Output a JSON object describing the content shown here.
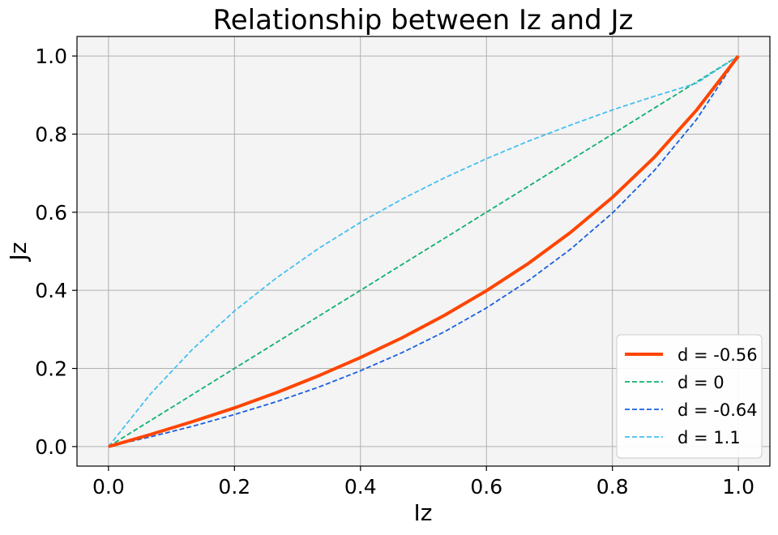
{
  "chart_data": {
    "type": "line",
    "title": "Relationship between Iz and Jz",
    "xlabel": "Iz",
    "ylabel": "Jz",
    "xlim": [
      -0.05,
      1.05
    ],
    "ylim": [
      -0.05,
      1.05
    ],
    "xticks": [
      "0.0",
      "0.2",
      "0.4",
      "0.6",
      "0.8",
      "1.0"
    ],
    "yticks": [
      "0.0",
      "0.2",
      "0.4",
      "0.6",
      "0.8",
      "1.0"
    ],
    "grid": true,
    "background": "#f4f4f4",
    "legend_position": "lower-right",
    "x": [
      0,
      0.0667,
      0.1333,
      0.2,
      0.2667,
      0.3333,
      0.4,
      0.4667,
      0.5333,
      0.6,
      0.6667,
      0.7333,
      0.8,
      0.8667,
      0.9333,
      1.0
    ],
    "series": [
      {
        "name": "d = -0.56",
        "color": "#ff4500",
        "style": "solid",
        "values": [
          0,
          0.031,
          0.064,
          0.099,
          0.138,
          0.181,
          0.228,
          0.279,
          0.336,
          0.399,
          0.469,
          0.548,
          0.638,
          0.741,
          0.861,
          1.0
        ]
      },
      {
        "name": "d = 0",
        "color": "#10b070",
        "style": "dashed",
        "values": [
          0,
          0.0667,
          0.1333,
          0.2,
          0.2667,
          0.3333,
          0.4,
          0.4667,
          0.5333,
          0.6,
          0.6667,
          0.7333,
          0.8,
          0.8667,
          0.9333,
          1.0
        ]
      },
      {
        "name": "d = -0.64",
        "color": "#1a5fe0",
        "style": "dashed",
        "values": [
          0,
          0.025,
          0.052,
          0.082,
          0.115,
          0.152,
          0.194,
          0.241,
          0.294,
          0.355,
          0.425,
          0.505,
          0.598,
          0.707,
          0.837,
          1.0
        ]
      },
      {
        "name": "d = 1.1",
        "color": "#45bff0",
        "style": "dashed",
        "values": [
          0,
          0.135,
          0.249,
          0.347,
          0.432,
          0.507,
          0.574,
          0.634,
          0.688,
          0.737,
          0.782,
          0.823,
          0.862,
          0.897,
          0.93,
          1.0
        ]
      }
    ]
  }
}
